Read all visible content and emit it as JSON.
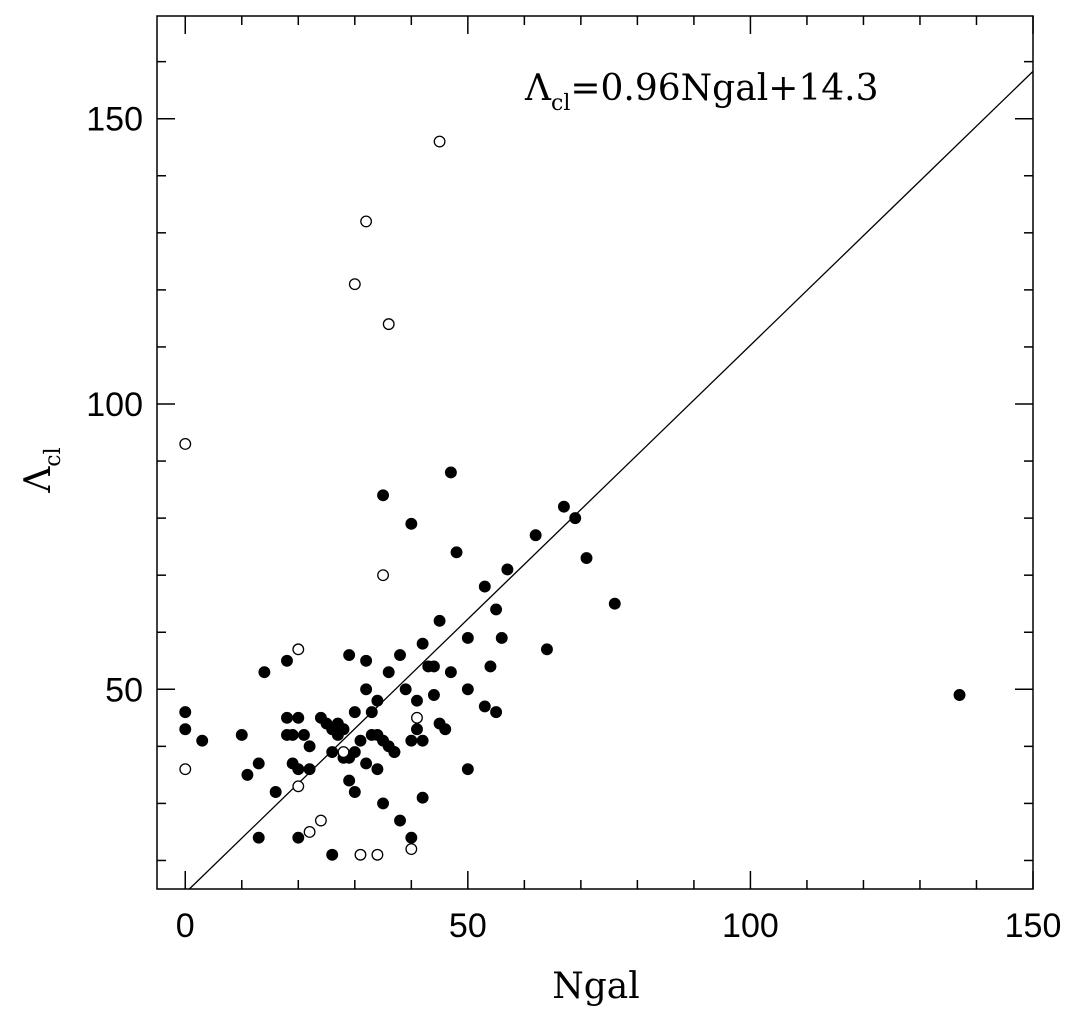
{
  "chart_data": {
    "type": "scatter",
    "title": "",
    "xlabel": "Ngal",
    "ylabel": {
      "main": "Λ",
      "sub": "cl"
    },
    "xlim": [
      -5,
      150
    ],
    "ylim": [
      15,
      168
    ],
    "x_ticks": [
      0,
      50,
      100,
      150
    ],
    "y_ticks": [
      50,
      100,
      150
    ],
    "x_tick_labels": [
      "0",
      "50",
      "100",
      "150"
    ],
    "y_tick_labels": [
      "50",
      "100",
      "150"
    ],
    "annotation": {
      "lambda": "Λ",
      "sub": "cl",
      "rest": "=0.96Ngal+14.3"
    },
    "fit_line": {
      "slope": 0.96,
      "intercept": 14.3
    },
    "colors": {
      "axis": "#000000",
      "filled": "#000000",
      "open": "#ffffff"
    },
    "series": [
      {
        "marker": "filled",
        "points": [
          [
            0,
            46
          ],
          [
            0,
            43
          ],
          [
            3,
            41
          ],
          [
            10,
            42
          ],
          [
            11,
            35
          ],
          [
            13,
            24
          ],
          [
            13,
            37
          ],
          [
            14,
            53
          ],
          [
            16,
            32
          ],
          [
            18,
            42
          ],
          [
            18,
            45
          ],
          [
            18,
            55
          ],
          [
            19,
            42
          ],
          [
            19,
            37
          ],
          [
            20,
            36
          ],
          [
            20,
            45
          ],
          [
            20,
            24
          ],
          [
            21,
            42
          ],
          [
            22,
            36
          ],
          [
            22,
            40
          ],
          [
            24,
            45
          ],
          [
            25,
            44
          ],
          [
            26,
            43
          ],
          [
            26,
            39
          ],
          [
            26,
            21
          ],
          [
            27,
            44
          ],
          [
            27,
            42
          ],
          [
            28,
            38
          ],
          [
            28,
            43
          ],
          [
            29,
            56
          ],
          [
            29,
            38
          ],
          [
            29,
            34
          ],
          [
            30,
            39
          ],
          [
            30,
            46
          ],
          [
            30,
            32
          ],
          [
            31,
            41
          ],
          [
            32,
            55
          ],
          [
            32,
            37
          ],
          [
            32,
            50
          ],
          [
            33,
            42
          ],
          [
            33,
            46
          ],
          [
            34,
            48
          ],
          [
            34,
            42
          ],
          [
            34,
            36
          ],
          [
            35,
            41
          ],
          [
            35,
            30
          ],
          [
            35,
            84
          ],
          [
            36,
            40
          ],
          [
            36,
            53
          ],
          [
            37,
            39
          ],
          [
            37,
            39
          ],
          [
            38,
            56
          ],
          [
            38,
            27
          ],
          [
            39,
            50
          ],
          [
            40,
            41
          ],
          [
            40,
            24
          ],
          [
            40,
            79
          ],
          [
            41,
            48
          ],
          [
            41,
            43
          ],
          [
            42,
            58
          ],
          [
            42,
            31
          ],
          [
            42,
            41
          ],
          [
            43,
            54
          ],
          [
            44,
            49
          ],
          [
            44,
            54
          ],
          [
            45,
            62
          ],
          [
            45,
            44
          ],
          [
            46,
            43
          ],
          [
            47,
            53
          ],
          [
            47,
            88
          ],
          [
            48,
            74
          ],
          [
            50,
            59
          ],
          [
            50,
            50
          ],
          [
            50,
            36
          ],
          [
            53,
            47
          ],
          [
            53,
            68
          ],
          [
            54,
            54
          ],
          [
            55,
            64
          ],
          [
            55,
            46
          ],
          [
            56,
            59
          ],
          [
            57,
            71
          ],
          [
            62,
            77
          ],
          [
            64,
            57
          ],
          [
            67,
            82
          ],
          [
            69,
            80
          ],
          [
            71,
            73
          ],
          [
            76,
            65
          ],
          [
            137,
            49
          ]
        ]
      },
      {
        "marker": "open",
        "points": [
          [
            0,
            93
          ],
          [
            0,
            36
          ],
          [
            20,
            57
          ],
          [
            20,
            33
          ],
          [
            22,
            25
          ],
          [
            24,
            27
          ],
          [
            28,
            39
          ],
          [
            30,
            121
          ],
          [
            31,
            21
          ],
          [
            32,
            132
          ],
          [
            34,
            21
          ],
          [
            35,
            70
          ],
          [
            36,
            114
          ],
          [
            40,
            22
          ],
          [
            41,
            45
          ],
          [
            45,
            146
          ]
        ]
      }
    ]
  }
}
